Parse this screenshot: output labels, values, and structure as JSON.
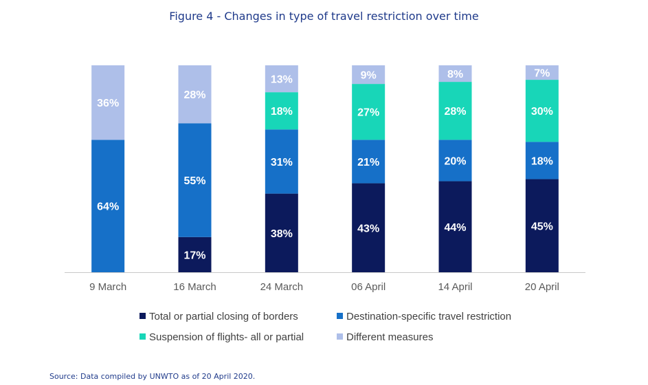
{
  "title": "Figure 4 - Changes in type of travel restriction over time",
  "source": "Source: Data compiled by UNWTO as of 20 April 2020.",
  "chart_data": {
    "type": "bar",
    "stacked": true,
    "categories": [
      "9 March",
      "16 March",
      "24 March",
      "06 April",
      "14 April",
      "20 April"
    ],
    "series": [
      {
        "name": "Total or partial closing of borders",
        "color": "#0c1a5c",
        "values": [
          0,
          17,
          38,
          43,
          44,
          45
        ]
      },
      {
        "name": "Destination-specific travel restriction",
        "color": "#1670c8",
        "values": [
          64,
          55,
          31,
          21,
          20,
          18
        ]
      },
      {
        "name": "Suspension of flights- all or partial",
        "color": "#18d6b8",
        "values": [
          0,
          0,
          18,
          27,
          28,
          30
        ]
      },
      {
        "name": "Different measures",
        "color": "#aebfe9",
        "values": [
          36,
          28,
          13,
          9,
          8,
          7
        ]
      }
    ],
    "value_suffix": "%",
    "ylim": [
      0,
      100
    ],
    "grid": false,
    "legend_position": "bottom"
  }
}
